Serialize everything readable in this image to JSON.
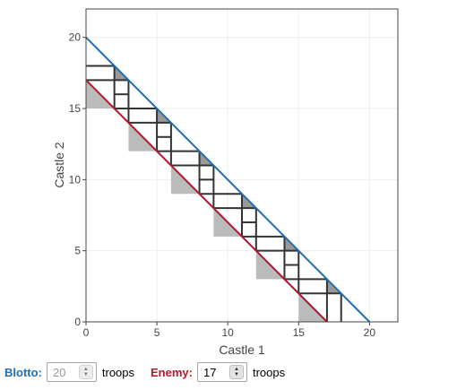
{
  "chart_data": {
    "type": "line",
    "xlabel": "Castle 1",
    "ylabel": "Castle 2",
    "xlim": [
      0,
      22
    ],
    "ylim": [
      0,
      22
    ],
    "xticks": [
      0,
      5,
      10,
      15,
      20
    ],
    "yticks": [
      0,
      5,
      10,
      15,
      20
    ],
    "grid": true,
    "blotto_line": {
      "color": "#1f6fb4",
      "points": [
        [
          0,
          20
        ],
        [
          20,
          0
        ]
      ]
    },
    "enemy_line": {
      "color": "#b2182b",
      "points": [
        [
          0,
          17
        ],
        [
          17,
          0
        ]
      ]
    },
    "shaded_triangles": [
      {
        "points": [
          [
            0,
            17
          ],
          [
            0,
            15
          ],
          [
            2,
            15
          ]
        ],
        "shade": "light"
      },
      {
        "points": [
          [
            2,
            18
          ],
          [
            3,
            17
          ],
          [
            2,
            17
          ]
        ],
        "shade": "dark"
      },
      {
        "points": [
          [
            3,
            14
          ],
          [
            3,
            12
          ],
          [
            5,
            12
          ]
        ],
        "shade": "light"
      },
      {
        "points": [
          [
            5,
            15
          ],
          [
            6,
            14
          ],
          [
            5,
            14
          ]
        ],
        "shade": "dark"
      },
      {
        "points": [
          [
            6,
            11
          ],
          [
            6,
            9
          ],
          [
            8,
            9
          ]
        ],
        "shade": "light"
      },
      {
        "points": [
          [
            8,
            12
          ],
          [
            9,
            11
          ],
          [
            8,
            11
          ]
        ],
        "shade": "dark"
      },
      {
        "points": [
          [
            9,
            8
          ],
          [
            9,
            6
          ],
          [
            11,
            6
          ]
        ],
        "shade": "light"
      },
      {
        "points": [
          [
            11,
            9
          ],
          [
            12,
            8
          ],
          [
            11,
            8
          ]
        ],
        "shade": "dark"
      },
      {
        "points": [
          [
            12,
            5
          ],
          [
            12,
            3
          ],
          [
            14,
            3
          ]
        ],
        "shade": "light"
      },
      {
        "points": [
          [
            14,
            6
          ],
          [
            15,
            5
          ],
          [
            14,
            5
          ]
        ],
        "shade": "dark"
      },
      {
        "points": [
          [
            15,
            2
          ],
          [
            15,
            0
          ],
          [
            17,
            0
          ]
        ],
        "shade": "light"
      },
      {
        "points": [
          [
            17,
            3
          ],
          [
            18,
            2
          ],
          [
            17,
            2
          ]
        ],
        "shade": "dark"
      }
    ],
    "staircases": [
      {
        "top_left": [
          0,
          18
        ],
        "steps": [
          [
            [
              0,
              18
            ],
            [
              2,
              18
            ]
          ],
          [
            [
              2,
              18
            ],
            [
              2,
              16
            ]
          ],
          [
            [
              0,
              17
            ],
            [
              3,
              17
            ]
          ],
          [
            [
              3,
              17
            ],
            [
              3,
              14
            ]
          ],
          [
            [
              2,
              16
            ],
            [
              2,
              15
            ]
          ],
          [
            [
              0,
              15
            ],
            [
              5,
              15
            ]
          ],
          [
            [
              3,
              14
            ],
            [
              6,
              14
            ]
          ],
          [
            [
              2,
              16
            ],
            [
              3,
              16
            ]
          ]
        ]
      }
    ],
    "grid_segments": [
      [
        [
          0,
          18
        ],
        [
          2,
          18
        ]
      ],
      [
        [
          0,
          17
        ],
        [
          3,
          17
        ]
      ],
      [
        [
          2,
          18
        ],
        [
          2,
          15
        ]
      ],
      [
        [
          3,
          17
        ],
        [
          3,
          14
        ]
      ],
      [
        [
          2,
          15
        ],
        [
          5,
          15
        ]
      ],
      [
        [
          3,
          14
        ],
        [
          6,
          14
        ]
      ],
      [
        [
          5,
          15
        ],
        [
          5,
          12
        ]
      ],
      [
        [
          6,
          14
        ],
        [
          6,
          11
        ]
      ],
      [
        [
          5,
          12
        ],
        [
          8,
          12
        ]
      ],
      [
        [
          6,
          11
        ],
        [
          9,
          11
        ]
      ],
      [
        [
          8,
          12
        ],
        [
          8,
          9
        ]
      ],
      [
        [
          9,
          11
        ],
        [
          9,
          8
        ]
      ],
      [
        [
          8,
          9
        ],
        [
          11,
          9
        ]
      ],
      [
        [
          9,
          8
        ],
        [
          12,
          8
        ]
      ],
      [
        [
          11,
          9
        ],
        [
          11,
          6
        ]
      ],
      [
        [
          12,
          8
        ],
        [
          12,
          5
        ]
      ],
      [
        [
          11,
          6
        ],
        [
          14,
          6
        ]
      ],
      [
        [
          12,
          5
        ],
        [
          15,
          5
        ]
      ],
      [
        [
          14,
          6
        ],
        [
          14,
          3
        ]
      ],
      [
        [
          15,
          5
        ],
        [
          15,
          2
        ]
      ],
      [
        [
          14,
          3
        ],
        [
          17,
          3
        ]
      ],
      [
        [
          15,
          2
        ],
        [
          18,
          2
        ]
      ],
      [
        [
          17,
          3
        ],
        [
          17,
          0
        ]
      ],
      [
        [
          18,
          2
        ],
        [
          18,
          0
        ]
      ],
      [
        [
          2,
          16
        ],
        [
          3,
          16
        ]
      ],
      [
        [
          5,
          13
        ],
        [
          6,
          13
        ]
      ],
      [
        [
          8,
          10
        ],
        [
          9,
          10
        ]
      ],
      [
        [
          11,
          7
        ],
        [
          12,
          7
        ]
      ],
      [
        [
          14,
          4
        ],
        [
          15,
          4
        ]
      ]
    ]
  },
  "controls": {
    "blotto_label": "Blotto:",
    "blotto_value": "20",
    "blotto_unit": "troops",
    "enemy_label": "Enemy:",
    "enemy_value": "17",
    "enemy_unit": "troops",
    "blotto_color": "#1f6fb4",
    "enemy_color": "#b2182b"
  }
}
